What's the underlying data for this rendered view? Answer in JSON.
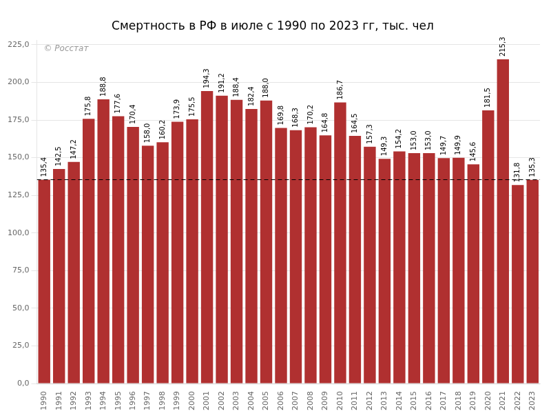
{
  "chart_data": {
    "type": "bar",
    "title": "Смертность в РФ в июле с 1990 по 2023 гг, тыс. чел",
    "categories": [
      "1990",
      "1991",
      "1992",
      "1993",
      "1994",
      "1995",
      "1996",
      "1997",
      "1998",
      "1999",
      "2000",
      "2001",
      "2002",
      "2003",
      "2004",
      "2005",
      "2006",
      "2007",
      "2008",
      "2009",
      "2010",
      "2011",
      "2012",
      "2013",
      "2014",
      "2015",
      "2016",
      "2017",
      "2018",
      "2019",
      "2020",
      "2021",
      "2022",
      "2023"
    ],
    "values": [
      135.4,
      142.5,
      147.2,
      175.8,
      188.8,
      177.6,
      170.4,
      158.0,
      160.2,
      173.9,
      175.5,
      194.3,
      191.2,
      188.4,
      182.4,
      188.0,
      169.8,
      168.3,
      170.2,
      164.8,
      186.7,
      164.5,
      157.3,
      149.3,
      154.2,
      153.0,
      153.0,
      149.7,
      149.9,
      145.6,
      181.5,
      215.3,
      131.8,
      135.3
    ],
    "value_labels": [
      "135,4",
      "142,5",
      "147,2",
      "175,8",
      "188,8",
      "177,6",
      "170,4",
      "158,0",
      "160,2",
      "173,9",
      "175,5",
      "194,3",
      "191,2",
      "188,4",
      "182,4",
      "188,0",
      "169,8",
      "168,3",
      "170,2",
      "164,8",
      "186,7",
      "164,5",
      "157,3",
      "149,3",
      "154,2",
      "153,0",
      "153,0",
      "149,7",
      "149,9",
      "145,6",
      "181,5",
      "215,3",
      "131,8",
      "135,3"
    ],
    "data_labels": true,
    "color": "#b03030",
    "ylim": [
      0,
      228
    ],
    "yticks": [
      {
        "value": 0,
        "label": "0,0"
      },
      {
        "value": 25,
        "label": "25,0"
      },
      {
        "value": 50,
        "label": "50,0"
      },
      {
        "value": 75,
        "label": "75,0"
      },
      {
        "value": 100,
        "label": "100,0"
      },
      {
        "value": 125,
        "label": "125,0"
      },
      {
        "value": 150,
        "label": "150,0"
      },
      {
        "value": 175,
        "label": "175,0"
      },
      {
        "value": 200,
        "label": "200,0"
      },
      {
        "value": 225,
        "label": "225,0"
      }
    ],
    "grid": true,
    "annotations": [
      {
        "text": "© Росстат"
      },
      {
        "y": 135.4,
        "line_style": "dashed"
      }
    ]
  }
}
